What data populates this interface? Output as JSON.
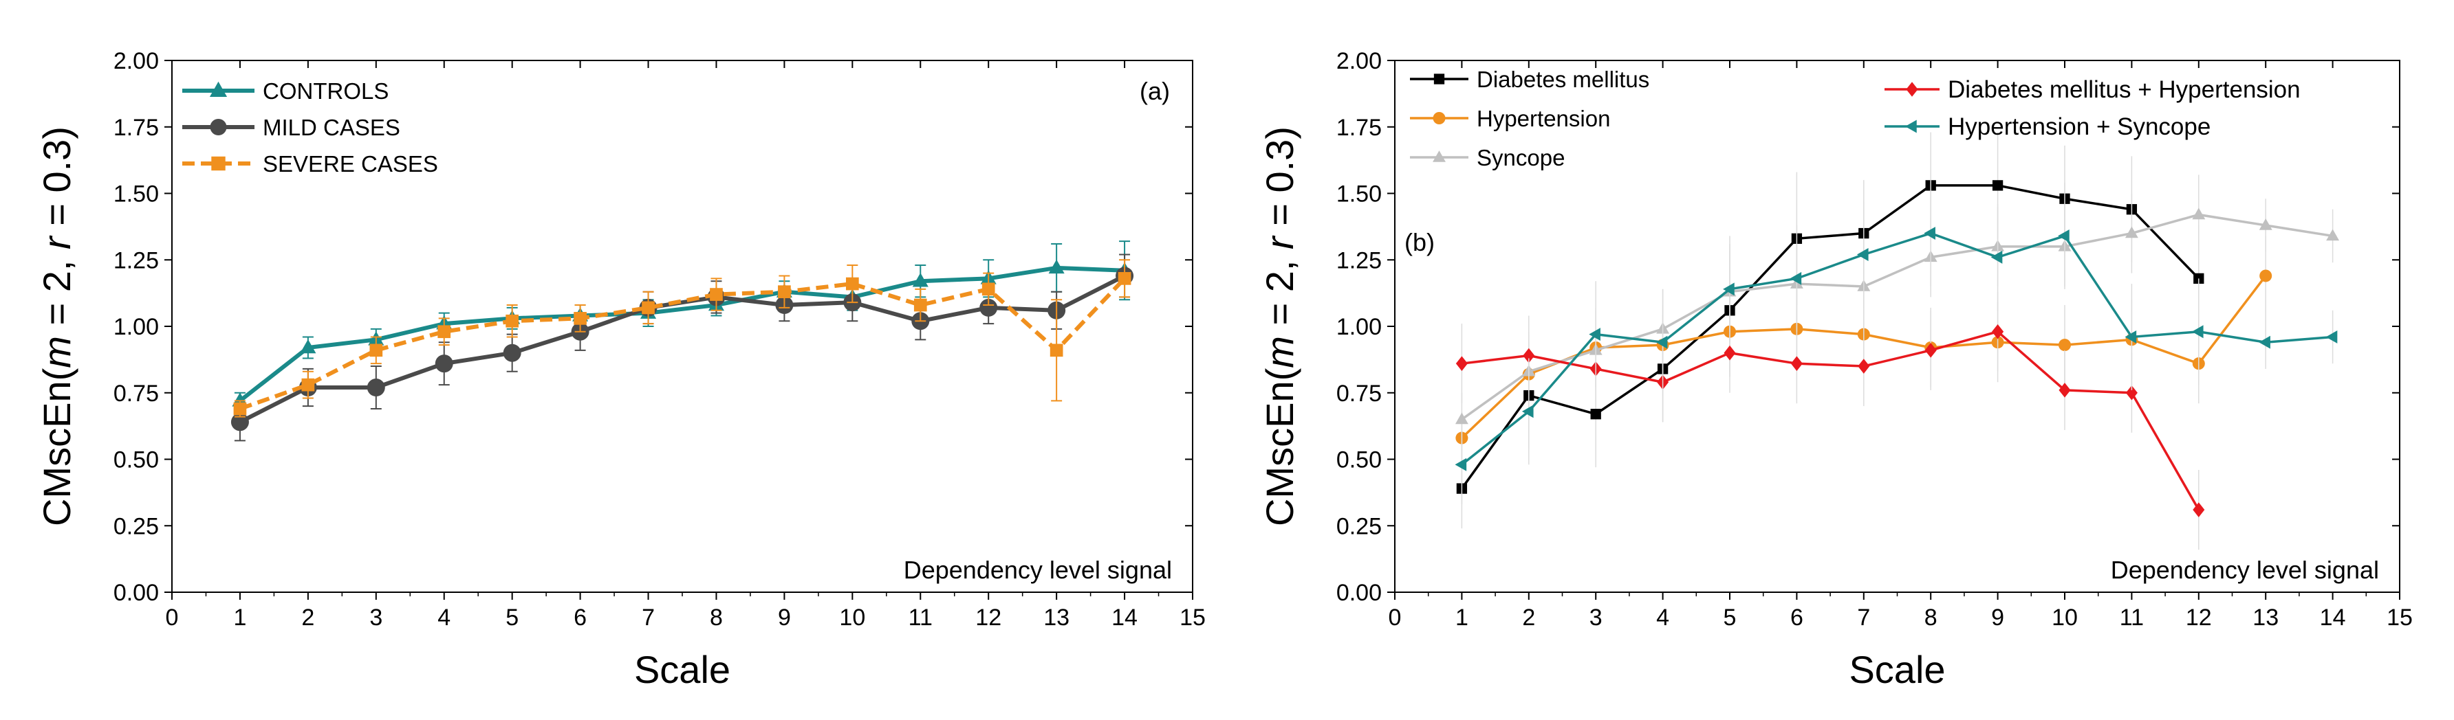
{
  "chart_data": [
    {
      "type": "line",
      "panel_label": "(a)",
      "annotation": "Dependency level signal",
      "xlabel": "Scale",
      "ylabel_parts": [
        "CMscEn(",
        "m",
        " = 2, ",
        "r",
        " = 0.3)"
      ],
      "xlim": [
        0,
        15
      ],
      "ylim": [
        0,
        2
      ],
      "xticks": [
        0,
        1,
        2,
        3,
        4,
        5,
        6,
        7,
        8,
        9,
        10,
        11,
        12,
        13,
        14,
        15
      ],
      "yticks": [
        0,
        0.25,
        0.5,
        0.75,
        1.0,
        1.25,
        1.5,
        1.75,
        2.0
      ],
      "ytick_labels": [
        "0.00",
        "0.25",
        "0.50",
        "0.75",
        "1.00",
        "1.25",
        "1.50",
        "1.75",
        "2.00"
      ],
      "x": [
        1,
        2,
        3,
        4,
        5,
        6,
        7,
        8,
        9,
        10,
        11,
        12,
        13,
        14
      ],
      "series": [
        {
          "name": "CONTROLS",
          "color": "#1a8a8a",
          "marker": "triangle-up",
          "dash": "solid",
          "values": [
            0.72,
            0.92,
            0.95,
            1.01,
            1.03,
            1.04,
            1.05,
            1.08,
            1.13,
            1.11,
            1.17,
            1.18,
            1.22,
            1.21
          ],
          "errors": [
            0.03,
            0.04,
            0.04,
            0.04,
            0.04,
            0.04,
            0.05,
            0.04,
            0.04,
            0.05,
            0.06,
            0.07,
            0.09,
            0.11
          ]
        },
        {
          "name": "MILD CASES",
          "color": "#4a4a4a",
          "marker": "circle",
          "dash": "solid",
          "values": [
            0.64,
            0.77,
            0.77,
            0.86,
            0.9,
            0.98,
            1.07,
            1.11,
            1.08,
            1.09,
            1.02,
            1.07,
            1.06,
            1.19
          ],
          "errors": [
            0.07,
            0.07,
            0.08,
            0.08,
            0.07,
            0.07,
            0.06,
            0.06,
            0.06,
            0.07,
            0.07,
            0.06,
            0.07,
            0.08
          ]
        },
        {
          "name": "SEVERE CASES",
          "color": "#f0901e",
          "marker": "square",
          "dash": "dashed",
          "values": [
            0.69,
            0.78,
            0.91,
            0.98,
            1.02,
            1.03,
            1.07,
            1.12,
            1.13,
            1.16,
            1.08,
            1.14,
            0.91,
            1.18
          ],
          "errors": [
            0.03,
            0.05,
            0.05,
            0.05,
            0.06,
            0.05,
            0.06,
            0.06,
            0.06,
            0.07,
            0.06,
            0.06,
            0.19,
            0.07
          ]
        }
      ]
    },
    {
      "type": "line",
      "panel_label": "(b)",
      "annotation": "Dependency level signal",
      "xlabel": "Scale",
      "ylabel_parts": [
        "CMscEn(",
        "m",
        " = 2, ",
        "r",
        " = 0.3)"
      ],
      "xlim": [
        0,
        15
      ],
      "ylim": [
        0,
        2
      ],
      "xticks": [
        0,
        1,
        2,
        3,
        4,
        5,
        6,
        7,
        8,
        9,
        10,
        11,
        12,
        13,
        14,
        15
      ],
      "yticks": [
        0,
        0.25,
        0.5,
        0.75,
        1.0,
        1.25,
        1.5,
        1.75,
        2.0
      ],
      "ytick_labels": [
        "0.00",
        "0.25",
        "0.50",
        "0.75",
        "1.00",
        "1.25",
        "1.50",
        "1.75",
        "2.00"
      ],
      "series": [
        {
          "name": "Diabetes mellitus",
          "color": "#000000",
          "marker": "square",
          "dash": "solid",
          "x": [
            1,
            2,
            3,
            4,
            5,
            6,
            7,
            8,
            9,
            10,
            11,
            12
          ],
          "values": [
            0.39,
            0.74,
            0.67,
            0.84,
            1.06,
            1.33,
            1.35,
            1.53,
            1.53,
            1.48,
            1.44,
            1.18
          ],
          "errors": [
            0.15,
            0.2,
            0.2,
            0.2,
            0.25,
            0.25,
            0.2,
            0.2,
            0.2,
            0.2,
            0.2,
            0.2
          ]
        },
        {
          "name": "Hypertension",
          "color": "#f0901e",
          "marker": "circle",
          "dash": "solid",
          "x": [
            1,
            2,
            3,
            4,
            5,
            6,
            7,
            8,
            9,
            10,
            11,
            12,
            13
          ],
          "values": [
            0.58,
            0.82,
            0.92,
            0.93,
            0.98,
            0.99,
            0.97,
            0.92,
            0.94,
            0.93,
            0.95,
            0.86,
            1.19
          ],
          "errors": [
            0.1,
            0.15,
            0.15,
            0.15,
            0.15,
            0.15,
            0.15,
            0.15,
            0.15,
            0.15,
            0.15,
            0.15,
            0.15
          ]
        },
        {
          "name": "Syncope",
          "color": "#c0c0c0",
          "marker": "triangle-up",
          "dash": "solid",
          "x": [
            1,
            2,
            3,
            4,
            5,
            6,
            7,
            8,
            9,
            10,
            11,
            12,
            13,
            14
          ],
          "values": [
            0.65,
            0.83,
            0.91,
            0.99,
            1.13,
            1.16,
            1.15,
            1.26,
            1.3,
            1.3,
            1.35,
            1.42,
            1.38,
            1.34
          ],
          "errors": [
            0.1,
            0.15,
            0.15,
            0.15,
            0.15,
            0.15,
            0.15,
            0.15,
            0.15,
            0.15,
            0.15,
            0.15,
            0.1,
            0.1
          ]
        },
        {
          "name": "Diabetes mellitus + Hypertension",
          "color": "#e8191e",
          "marker": "diamond",
          "dash": "solid",
          "x": [
            1,
            2,
            3,
            4,
            5,
            6,
            7,
            8,
            9,
            10,
            11,
            12
          ],
          "values": [
            0.86,
            0.89,
            0.84,
            0.79,
            0.9,
            0.86,
            0.85,
            0.91,
            0.98,
            0.76,
            0.75,
            0.31
          ],
          "errors": [
            0.15,
            0.15,
            0.15,
            0.15,
            0.15,
            0.15,
            0.15,
            0.15,
            0.15,
            0.15,
            0.15,
            0.15
          ]
        },
        {
          "name": "Hypertension + Syncope",
          "color": "#1a8a8a",
          "marker": "triangle-left",
          "dash": "solid",
          "x": [
            1,
            2,
            3,
            4,
            5,
            6,
            7,
            8,
            9,
            10,
            11,
            12,
            13,
            14
          ],
          "values": [
            0.48,
            0.68,
            0.97,
            0.94,
            1.14,
            1.18,
            1.27,
            1.35,
            1.26,
            1.34,
            0.96,
            0.98,
            0.94,
            0.96
          ],
          "errors": [
            0.15,
            0.2,
            0.2,
            0.2,
            0.2,
            0.2,
            0.2,
            0.2,
            0.2,
            0.2,
            0.2,
            0.2,
            0.1,
            0.1
          ]
        }
      ]
    }
  ]
}
